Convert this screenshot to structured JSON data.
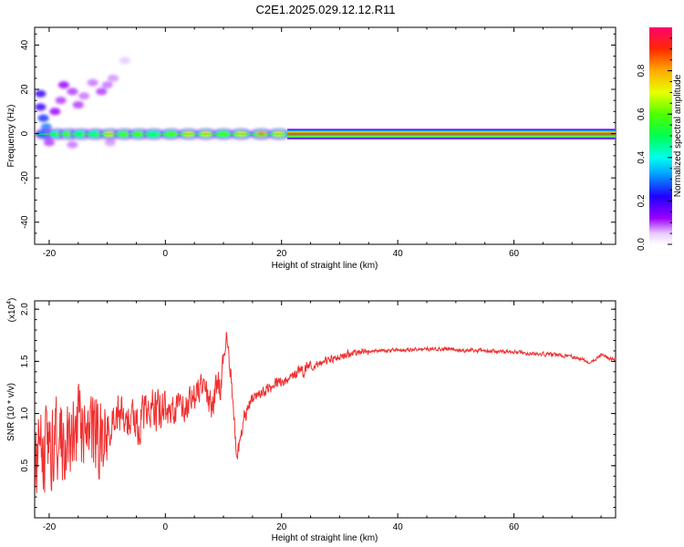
{
  "title": "C2E1.2025.029.12.12.R11",
  "chart_data": [
    {
      "type": "heatmap",
      "xlabel": "Height of straight line (km)",
      "ylabel": "Frequency (Hz)",
      "xlim": [
        -22.5,
        77.5
      ],
      "ylim": [
        -50,
        48
      ],
      "xticks": [
        -20,
        0,
        20,
        40,
        60
      ],
      "yticks": [
        40,
        20,
        0,
        -20,
        -40
      ],
      "grid": false,
      "description_free": true,
      "ridge": {
        "freq_hz": 0,
        "segments": [
          {
            "x": -20.5,
            "amp": 0.35
          },
          {
            "x": -18.5,
            "amp": 0.5
          },
          {
            "x": -16.5,
            "amp": 0.6
          },
          {
            "x": -14.5,
            "amp": 0.45
          },
          {
            "x": -12.0,
            "amp": 0.55
          },
          {
            "x": -9.5,
            "amp": 0.75
          },
          {
            "x": -7.0,
            "amp": 0.7
          },
          {
            "x": -4.5,
            "amp": 0.65
          },
          {
            "x": -2.0,
            "amp": 0.55
          },
          {
            "x": 1.0,
            "amp": 0.7
          },
          {
            "x": 4.0,
            "amp": 0.8
          },
          {
            "x": 7.0,
            "amp": 0.75
          },
          {
            "x": 10.0,
            "amp": 0.72
          },
          {
            "x": 13.0,
            "amp": 0.85
          },
          {
            "x": 16.5,
            "amp": 0.9
          },
          {
            "x": 19.5,
            "amp": 0.88
          }
        ],
        "continuous_from": 21,
        "continuous_amp": 0.97
      },
      "blobs": [
        {
          "x": -21.5,
          "y": 18,
          "amp": 0.2
        },
        {
          "x": -21.5,
          "y": 12,
          "amp": 0.2
        },
        {
          "x": -21.0,
          "y": 7,
          "amp": 0.25
        },
        {
          "x": -20.5,
          "y": 3,
          "amp": 0.3
        },
        {
          "x": -19.0,
          "y": 10,
          "amp": 0.12
        },
        {
          "x": -18.0,
          "y": 15,
          "amp": 0.1
        },
        {
          "x": -17.5,
          "y": 22,
          "amp": 0.12
        },
        {
          "x": -16.0,
          "y": 19,
          "amp": 0.1
        },
        {
          "x": -15.0,
          "y": 13,
          "amp": 0.1
        },
        {
          "x": -14.0,
          "y": 17,
          "amp": 0.08
        },
        {
          "x": -12.5,
          "y": 23,
          "amp": 0.08
        },
        {
          "x": -11.0,
          "y": 19,
          "amp": 0.1
        },
        {
          "x": -10.0,
          "y": 22,
          "amp": 0.08
        },
        {
          "x": -9.0,
          "y": 25,
          "amp": 0.07
        },
        {
          "x": -7.0,
          "y": 33,
          "amp": 0.05
        },
        {
          "x": -20.0,
          "y": -4,
          "amp": 0.1
        },
        {
          "x": -16.0,
          "y": -5,
          "amp": 0.08
        },
        {
          "x": -9.5,
          "y": -4,
          "amp": 0.07
        }
      ]
    },
    {
      "type": "colorbar",
      "label": "Normalized spectral amplitude",
      "range": [
        0,
        1
      ],
      "ticks": [
        0.0,
        0.2,
        0.4,
        0.6,
        0.8
      ],
      "tick_labels": [
        "0.0",
        "0.2",
        "0.4",
        "0.6",
        "0.8"
      ]
    },
    {
      "type": "line",
      "xlabel": "Height of straight line (km)",
      "ylabel": "SNR (10 * v/v)",
      "y_scale_label": "(x10",
      "y_scale_exp": "4",
      "y_scale_close": ")",
      "xlim": [
        -22.5,
        77.5
      ],
      "ylim": [
        0,
        2.08
      ],
      "xticks": [
        -20,
        0,
        20,
        40,
        60
      ],
      "yticks": [
        0.5,
        1.0,
        1.5,
        2.0
      ],
      "ytick_labels": [
        "0.5",
        "1.0",
        "1.5",
        "2.0"
      ],
      "grid": false,
      "series_color": "#f03030",
      "keypoints": [
        [
          -22.5,
          0.55
        ],
        [
          -20.0,
          0.7
        ],
        [
          -17.0,
          0.8
        ],
        [
          -14.0,
          0.85
        ],
        [
          -11.0,
          0.75
        ],
        [
          -8.0,
          1.0
        ],
        [
          -5.0,
          0.9
        ],
        [
          -2.0,
          1.05
        ],
        [
          1.0,
          1.0
        ],
        [
          4.0,
          1.1
        ],
        [
          6.0,
          1.25
        ],
        [
          8.0,
          1.1
        ],
        [
          9.5,
          1.3
        ],
        [
          10.5,
          1.75
        ],
        [
          11.3,
          1.35
        ],
        [
          12.3,
          0.55
        ],
        [
          13.5,
          0.95
        ],
        [
          15.0,
          1.15
        ],
        [
          18.0,
          1.25
        ],
        [
          20.0,
          1.3
        ],
        [
          23.0,
          1.4
        ],
        [
          27.0,
          1.5
        ],
        [
          31.0,
          1.56
        ],
        [
          35.0,
          1.6
        ],
        [
          40.0,
          1.61
        ],
        [
          45.0,
          1.62
        ],
        [
          50.0,
          1.61
        ],
        [
          55.0,
          1.6
        ],
        [
          60.0,
          1.59
        ],
        [
          65.0,
          1.57
        ],
        [
          70.0,
          1.55
        ],
        [
          73.0,
          1.49
        ],
        [
          75.0,
          1.56
        ],
        [
          77.5,
          1.51
        ]
      ]
    }
  ]
}
